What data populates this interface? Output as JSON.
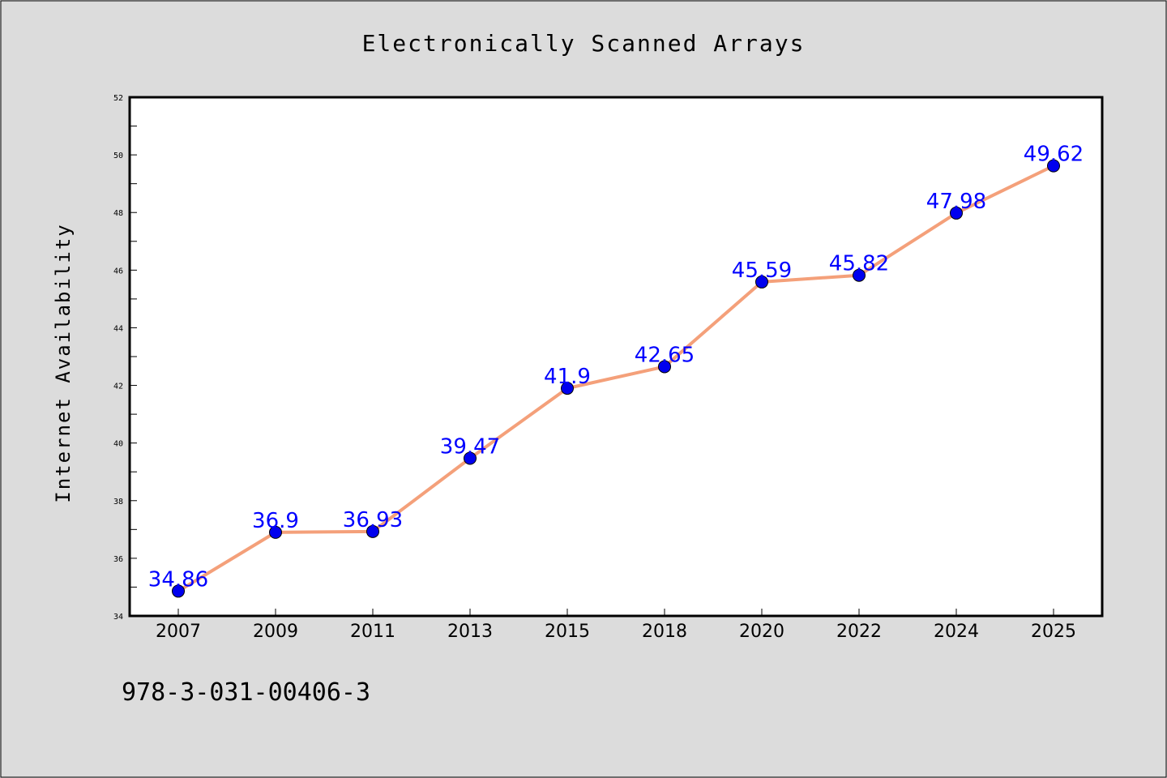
{
  "chart_data": {
    "type": "line",
    "title": "Electronically Scanned Arrays",
    "xlabel": "",
    "ylabel": "Internet Availability",
    "categories": [
      "2007",
      "2009",
      "2011",
      "2013",
      "2015",
      "2018",
      "2020",
      "2022",
      "2024",
      "2025"
    ],
    "values": [
      34.86,
      36.9,
      36.93,
      39.47,
      41.9,
      42.65,
      45.59,
      45.82,
      47.98,
      49.62
    ],
    "data_labels": [
      "34.86",
      "36.9",
      "36.93",
      "39.47",
      "41.9",
      "42.65",
      "45.59",
      "45.82",
      "47.98",
      "49.62"
    ],
    "ylim": [
      34,
      52
    ],
    "yticks": [
      34,
      36,
      38,
      40,
      42,
      44,
      46,
      48,
      50,
      52
    ],
    "ytick_labels": [
      "34",
      "36",
      "38",
      "40",
      "42",
      "44",
      "46",
      "48",
      "50",
      "52"
    ],
    "grid": false,
    "line_color": "#f4a07a",
    "marker_color": "#0000ee",
    "label_color": "#0000ff"
  },
  "footer": {
    "isbn": "978-3-031-00406-3"
  }
}
